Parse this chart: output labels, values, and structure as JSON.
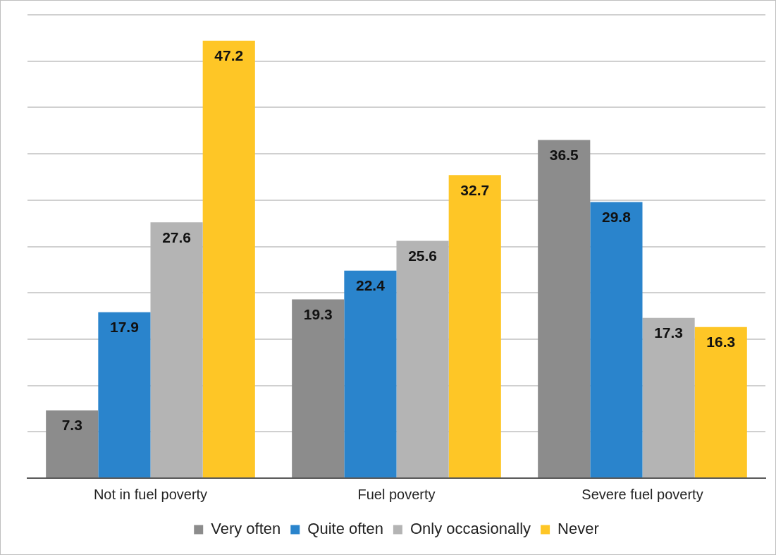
{
  "chart_data": {
    "type": "bar",
    "categories": [
      "Not in fuel poverty",
      "Fuel poverty",
      "Severe fuel poverty"
    ],
    "series": [
      {
        "name": "Very often",
        "color": "#8c8c8c",
        "values": [
          7.3,
          19.3,
          36.5
        ]
      },
      {
        "name": "Quite often",
        "color": "#2a84cc",
        "values": [
          17.9,
          22.4,
          29.8
        ]
      },
      {
        "name": "Only occasionally",
        "color": "#b4b4b4",
        "values": [
          27.6,
          25.6,
          17.3
        ]
      },
      {
        "name": "Never",
        "color": "#fec626",
        "values": [
          47.2,
          32.7,
          16.3
        ]
      }
    ],
    "ylim": [
      0,
      50
    ],
    "yticks": [
      {
        "value": 0,
        "label": null
      },
      {
        "value": 5,
        "label": null
      },
      {
        "value": 10,
        "label": null
      },
      {
        "value": 15,
        "label": null
      },
      {
        "value": 20,
        "label": null
      },
      {
        "value": 25,
        "label": null
      },
      {
        "value": 30,
        "label": null
      },
      {
        "value": 35,
        "label": null
      },
      {
        "value": 40,
        "label": null
      },
      {
        "value": 45,
        "label": null
      },
      {
        "value": 50,
        "label": null
      }
    ],
    "tick_labels": "x",
    "grid": "y",
    "legend": "bottom",
    "data_labels": true
  }
}
